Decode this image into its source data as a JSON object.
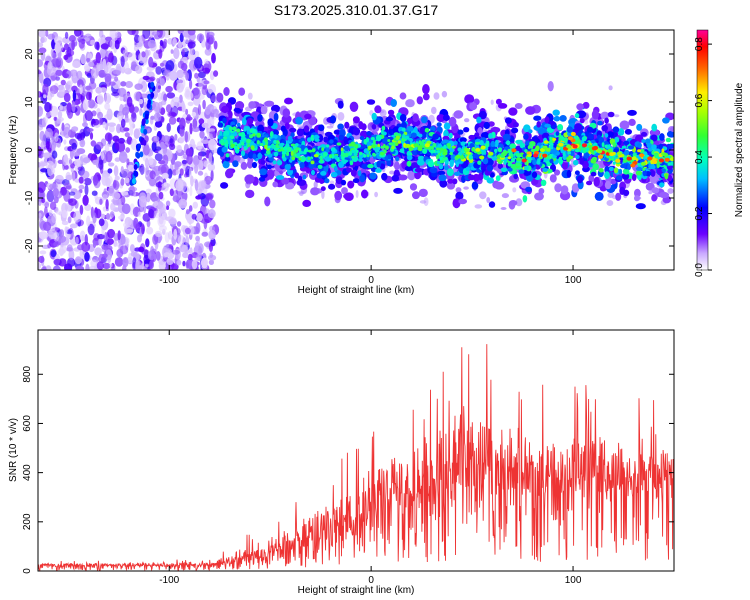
{
  "chart_data": [
    {
      "type": "heatmap",
      "title": "S173.2025.310.01.37.G17",
      "xlabel": "Height of straight line (km)",
      "ylabel": "Frequency (Hz)",
      "xlim": [
        -165,
        150
      ],
      "ylim": [
        -25,
        25
      ],
      "xticks": [
        -100,
        0,
        100
      ],
      "xtick_labels": [
        "-100",
        "0",
        "100"
      ],
      "yticks": [
        -20,
        -10,
        0,
        10,
        20
      ],
      "ytick_labels": [
        "-20",
        "-10",
        "0",
        "10",
        "20"
      ],
      "colorbar": {
        "label": "Normalized spectral amplitude",
        "range": [
          0.0,
          0.85
        ],
        "ticks": [
          0.0,
          0.2,
          0.4,
          0.6,
          0.8
        ],
        "tick_labels": [
          "0.0",
          "0.2",
          "0.4",
          "0.6",
          "0.8"
        ],
        "colormap": [
          "#ffffff",
          "#9b59ff",
          "#3300ff",
          "#0066ff",
          "#00ffff",
          "#33ff33",
          "#ccff00",
          "#ffcc00",
          "#ff0000",
          "#ff0099"
        ]
      },
      "ridge": {
        "x": [
          -75,
          -60,
          -45,
          -30,
          -15,
          0,
          15,
          30,
          45,
          60,
          75,
          90,
          105,
          120,
          135,
          148
        ],
        "y": [
          3,
          2,
          0,
          -1,
          -1,
          0,
          2,
          0,
          -1,
          0,
          -2,
          1,
          1,
          -1,
          -2,
          -2
        ]
      },
      "streak": {
        "x": [
          -118,
          -108
        ],
        "y": [
          -7,
          14
        ]
      },
      "noise_region_x": [
        -165,
        -77
      ]
    },
    {
      "type": "line",
      "title": "",
      "xlabel": "Height of straight line (km)",
      "ylabel": "SNR (10 * v/v)",
      "xlim": [
        -165,
        150
      ],
      "ylim": [
        0,
        980
      ],
      "xticks": [
        -100,
        0,
        100
      ],
      "xtick_labels": [
        "-100",
        "0",
        "100"
      ],
      "yticks": [
        0,
        200,
        400,
        600,
        800
      ],
      "ytick_labels": [
        "0",
        "200",
        "400",
        "600",
        "800"
      ],
      "series": [
        {
          "name": "SNR",
          "color": "#ee3333",
          "envelope_x": [
            -165,
            -80,
            -70,
            -55,
            -40,
            -25,
            -10,
            0,
            10,
            20,
            35,
            50,
            65,
            80,
            95,
            110,
            125,
            140,
            150
          ],
          "envelope_mean": [
            22,
            25,
            40,
            70,
            110,
            160,
            200,
            260,
            300,
            330,
            380,
            400,
            390,
            370,
            380,
            390,
            370,
            340,
            400
          ],
          "envelope_max": [
            40,
            50,
            130,
            200,
            280,
            420,
            500,
            600,
            720,
            800,
            950,
            980,
            880,
            800,
            720,
            820,
            760,
            700,
            680
          ]
        }
      ]
    }
  ]
}
